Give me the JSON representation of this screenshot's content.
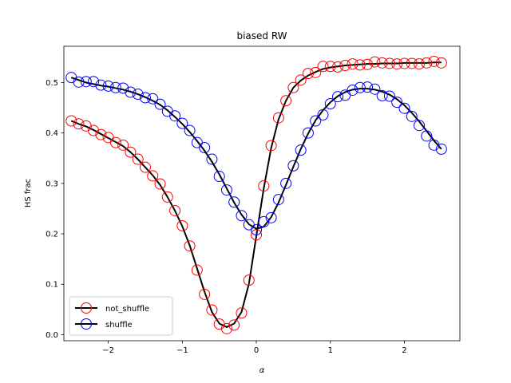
{
  "chart_data": {
    "type": "line",
    "title": "biased RW",
    "xlabel": "α",
    "ylabel": "HS frac",
    "xlim": [
      -2.6,
      2.75
    ],
    "ylim": [
      -0.012,
      0.572
    ],
    "xticks": [
      -2,
      -1,
      0,
      1,
      2
    ],
    "xtick_labels": [
      "−2",
      "−1",
      "0",
      "1",
      "2"
    ],
    "yticks": [
      0.0,
      0.1,
      0.2,
      0.3,
      0.4,
      0.5
    ],
    "ytick_labels": [
      "0.0",
      "0.1",
      "0.2",
      "0.3",
      "0.4",
      "0.5"
    ],
    "grid": false,
    "legend_position": "lower-left",
    "fit_line_color": "#000000",
    "x": [
      -2.5,
      -2.4,
      -2.3,
      -2.2,
      -2.1,
      -2.0,
      -1.9,
      -1.8,
      -1.7,
      -1.6,
      -1.5,
      -1.4,
      -1.3,
      -1.2,
      -1.1,
      -1.0,
      -0.9,
      -0.8,
      -0.7,
      -0.6,
      -0.5,
      -0.4,
      -0.3,
      -0.2,
      -0.1,
      0.0,
      0.1,
      0.2,
      0.3,
      0.4,
      0.5,
      0.6,
      0.7,
      0.8,
      0.9,
      1.0,
      1.1,
      1.2,
      1.3,
      1.4,
      1.5,
      1.6,
      1.7,
      1.8,
      1.9,
      2.0,
      2.1,
      2.2,
      2.3,
      2.4,
      2.5
    ],
    "series": [
      {
        "name": "not_shuffle",
        "marker_color": "#ff0000",
        "values": [
          0.424,
          0.418,
          0.414,
          0.405,
          0.397,
          0.391,
          0.381,
          0.376,
          0.362,
          0.348,
          0.332,
          0.315,
          0.299,
          0.273,
          0.246,
          0.216,
          0.176,
          0.128,
          0.08,
          0.049,
          0.021,
          0.012,
          0.019,
          0.043,
          0.108,
          0.198,
          0.295,
          0.375,
          0.43,
          0.464,
          0.49,
          0.505,
          0.518,
          0.52,
          0.532,
          0.532,
          0.531,
          0.534,
          0.537,
          0.535,
          0.536,
          0.541,
          0.539,
          0.538,
          0.537,
          0.538,
          0.538,
          0.537,
          0.539,
          0.542,
          0.539
        ],
        "fit": [
          0.424,
          0.418,
          0.413,
          0.406,
          0.398,
          0.39,
          0.382,
          0.374,
          0.362,
          0.348,
          0.332,
          0.316,
          0.297,
          0.273,
          0.246,
          0.215,
          0.177,
          0.131,
          0.085,
          0.045,
          0.022,
          0.015,
          0.022,
          0.045,
          0.101,
          0.196,
          0.29,
          0.37,
          0.427,
          0.464,
          0.49,
          0.504,
          0.514,
          0.521,
          0.527,
          0.53,
          0.532,
          0.534,
          0.535,
          0.536,
          0.537,
          0.537,
          0.538,
          0.538,
          0.538,
          0.539,
          0.539,
          0.539,
          0.539,
          0.54,
          0.54
        ]
      },
      {
        "name": "shuffle",
        "marker_color": "#0000ff",
        "values": [
          0.51,
          0.501,
          0.502,
          0.502,
          0.495,
          0.493,
          0.49,
          0.489,
          0.481,
          0.477,
          0.47,
          0.468,
          0.457,
          0.443,
          0.434,
          0.419,
          0.405,
          0.381,
          0.371,
          0.348,
          0.314,
          0.287,
          0.263,
          0.236,
          0.218,
          0.208,
          0.224,
          0.232,
          0.268,
          0.3,
          0.335,
          0.366,
          0.4,
          0.424,
          0.436,
          0.458,
          0.472,
          0.475,
          0.485,
          0.49,
          0.491,
          0.487,
          0.474,
          0.473,
          0.461,
          0.449,
          0.433,
          0.415,
          0.394,
          0.376,
          0.368
        ],
        "fit": [
          0.51,
          0.505,
          0.5,
          0.497,
          0.494,
          0.492,
          0.489,
          0.486,
          0.482,
          0.477,
          0.471,
          0.464,
          0.456,
          0.445,
          0.432,
          0.418,
          0.402,
          0.384,
          0.365,
          0.343,
          0.318,
          0.29,
          0.262,
          0.238,
          0.219,
          0.21,
          0.214,
          0.233,
          0.262,
          0.297,
          0.333,
          0.368,
          0.399,
          0.425,
          0.445,
          0.461,
          0.473,
          0.481,
          0.486,
          0.488,
          0.488,
          0.486,
          0.482,
          0.476,
          0.467,
          0.455,
          0.44,
          0.423,
          0.404,
          0.385,
          0.368
        ]
      }
    ]
  }
}
